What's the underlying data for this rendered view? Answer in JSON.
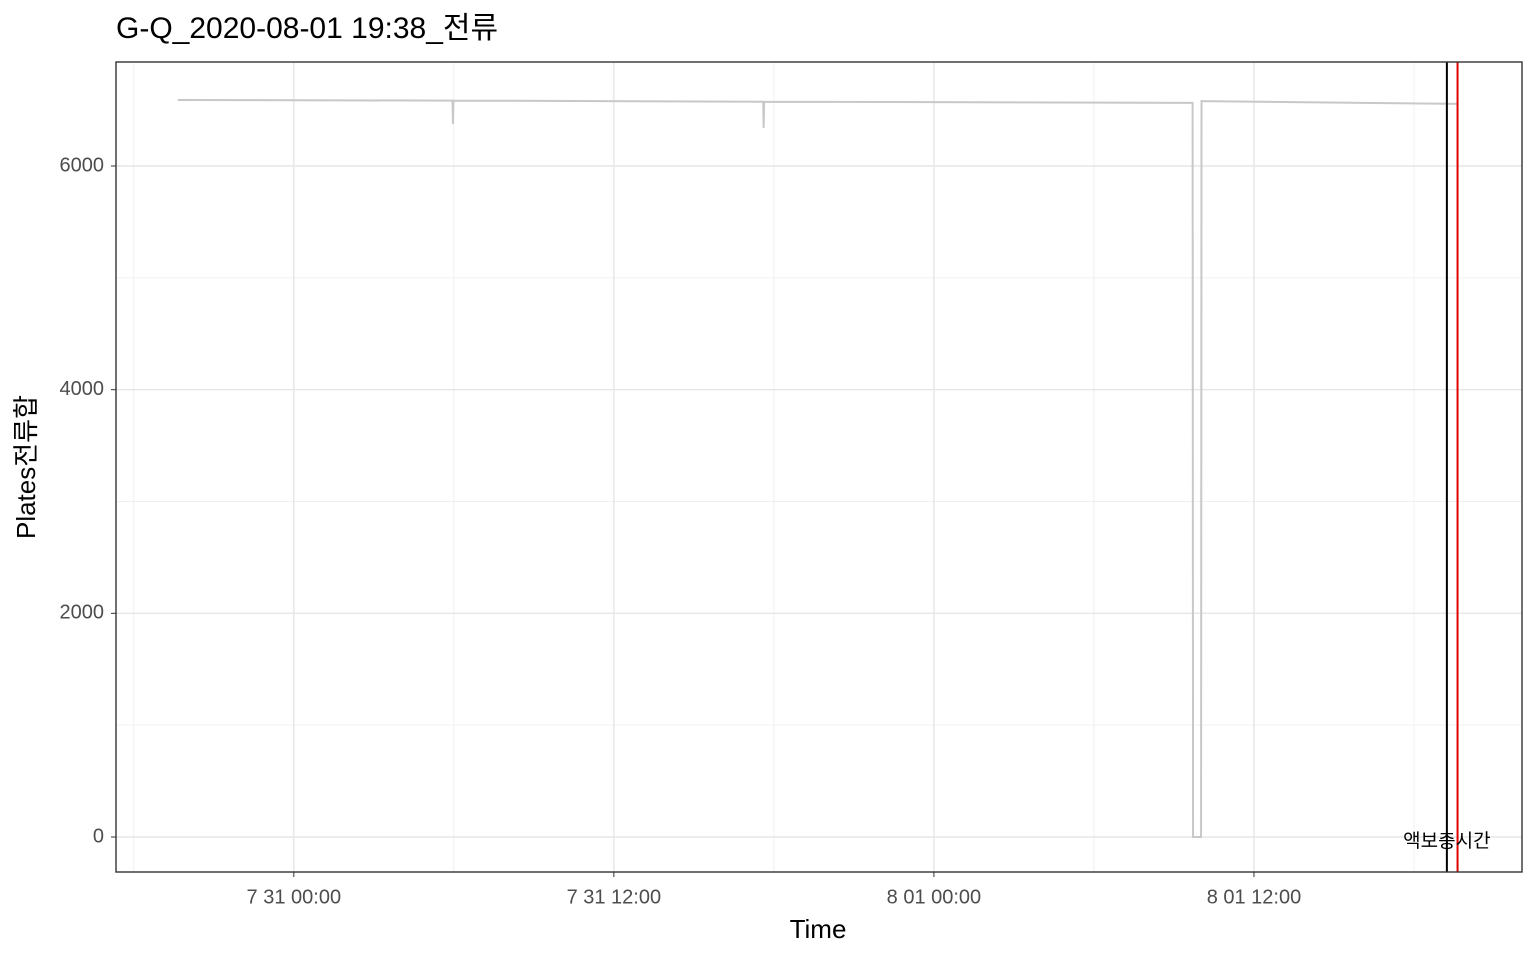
{
  "chart_data": {
    "type": "line",
    "title": "G-Q_2020-08-01 19:38_전류",
    "x_label": "Time",
    "y_label": "Plates전류합",
    "x": [
      "7 30 19:39",
      "7 31 05:57",
      "7 31 05:58",
      "7 31 05:59",
      "7 31 17:36",
      "7 31 17:37",
      "7 31 17:38",
      "8 01 09:42",
      "8 01 09:43",
      "8 01 10:01",
      "8 01 10:02",
      "8 01 19:38"
    ],
    "series": [
      {
        "color": "#c8c8c8",
        "values": [
          6590,
          6585,
          6376,
          6585,
          6575,
          6340,
          6575,
          6565,
          0,
          0,
          6580,
          6555
        ]
      }
    ],
    "xlim": [
      "7 30 17:20",
      "8 01 22:03"
    ],
    "xticks": [
      "7 31 00:00",
      "7 31 12:00",
      "8 01 00:00",
      "8 01 12:00"
    ],
    "xminorticks": [
      "7 30 18:00",
      "7 31 06:00",
      "7 31 18:00",
      "8 01 06:00",
      "8 01 18:00"
    ],
    "ylim": [
      -313,
      6930
    ],
    "yticks": [
      0,
      2000,
      4000,
      6000
    ],
    "yminorticks": [
      1000,
      3000,
      5000
    ],
    "grid": true,
    "vlines": [
      {
        "x": "8 01 19:14",
        "color": "#000000"
      },
      {
        "x": "8 01 19:38",
        "color": "#e00000"
      }
    ],
    "annotation": {
      "text": "액보충시간",
      "x": "8 01 19:14",
      "y": 0
    }
  }
}
